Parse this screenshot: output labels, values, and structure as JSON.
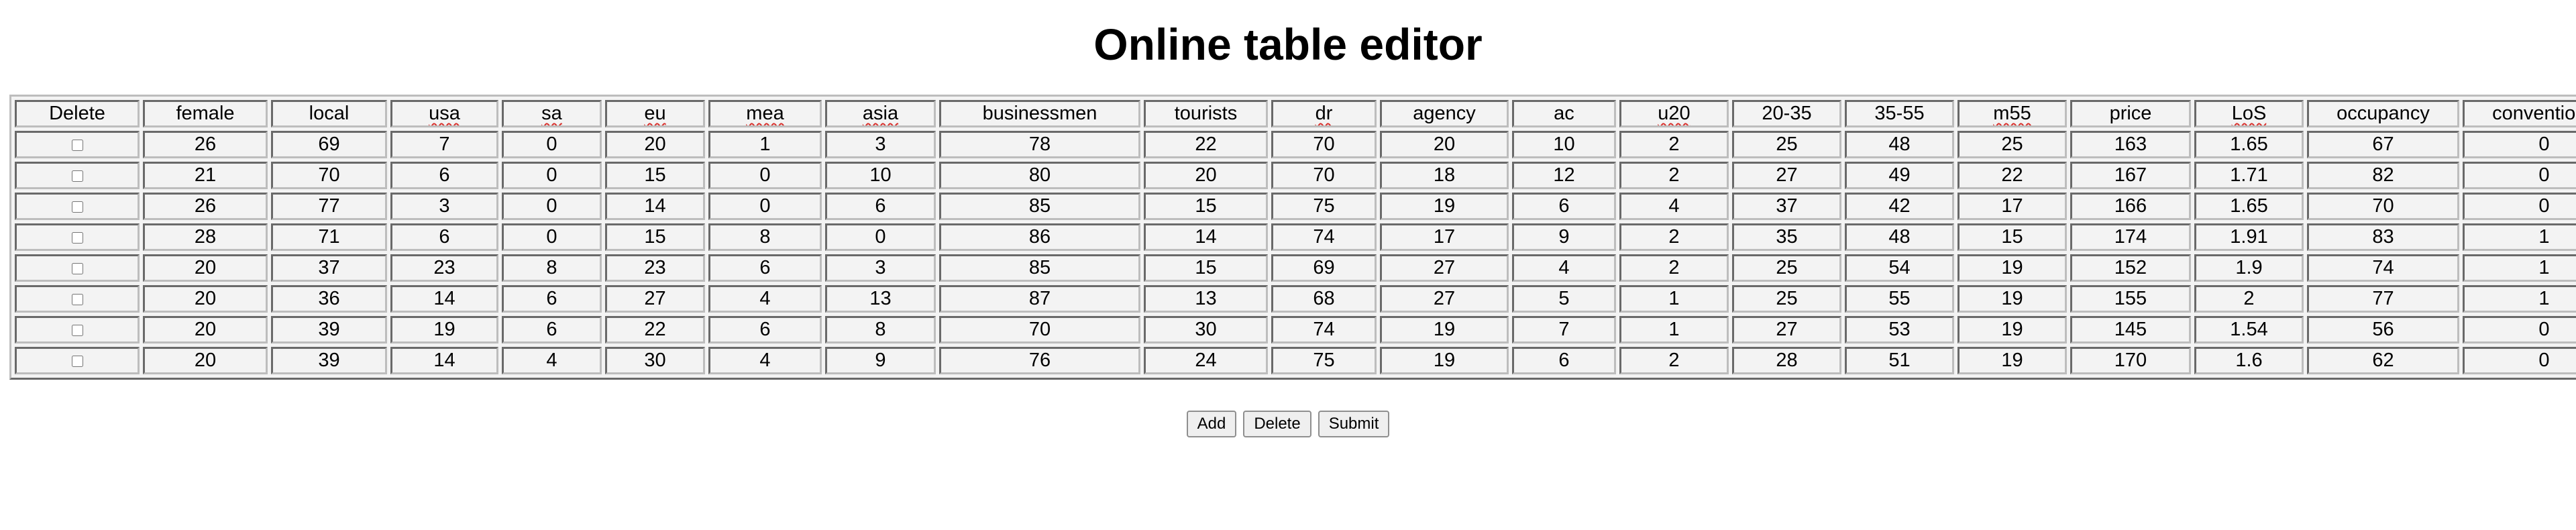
{
  "page": {
    "title": "Online table editor"
  },
  "table": {
    "columns": [
      {
        "label": "Delete",
        "key": "delete",
        "spell": false
      },
      {
        "label": "female",
        "key": "female",
        "spell": false
      },
      {
        "label": "local",
        "key": "local",
        "spell": false
      },
      {
        "label": "usa",
        "key": "usa",
        "spell": true
      },
      {
        "label": "sa",
        "key": "sa",
        "spell": true
      },
      {
        "label": "eu",
        "key": "eu",
        "spell": true
      },
      {
        "label": "mea",
        "key": "mea",
        "spell": true
      },
      {
        "label": "asia",
        "key": "asia",
        "spell": true
      },
      {
        "label": "businessmen",
        "key": "businessmen",
        "spell": false
      },
      {
        "label": "tourists",
        "key": "tourists",
        "spell": false
      },
      {
        "label": "dr",
        "key": "dr",
        "spell": true
      },
      {
        "label": "agency",
        "key": "agency",
        "spell": false
      },
      {
        "label": "ac",
        "key": "ac",
        "spell": false
      },
      {
        "label": "u20",
        "key": "u20",
        "spell": true
      },
      {
        "label": "20-35",
        "key": "a20_35",
        "spell": false
      },
      {
        "label": "35-55",
        "key": "a35_55",
        "spell": false
      },
      {
        "label": "m55",
        "key": "m55",
        "spell": true
      },
      {
        "label": "price",
        "key": "price",
        "spell": false
      },
      {
        "label": "LoS",
        "key": "los",
        "spell": true
      },
      {
        "label": "occupancy",
        "key": "occupancy",
        "spell": false
      },
      {
        "label": "conventions",
        "key": "conventions",
        "spell": false
      }
    ],
    "rows": [
      {
        "checked": false,
        "values": [
          "26",
          "69",
          "7",
          "0",
          "20",
          "1",
          "3",
          "78",
          "22",
          "70",
          "20",
          "10",
          "2",
          "25",
          "48",
          "25",
          "163",
          "1.65",
          "67",
          "0"
        ]
      },
      {
        "checked": false,
        "values": [
          "21",
          "70",
          "6",
          "0",
          "15",
          "0",
          "10",
          "80",
          "20",
          "70",
          "18",
          "12",
          "2",
          "27",
          "49",
          "22",
          "167",
          "1.71",
          "82",
          "0"
        ]
      },
      {
        "checked": false,
        "values": [
          "26",
          "77",
          "3",
          "0",
          "14",
          "0",
          "6",
          "85",
          "15",
          "75",
          "19",
          "6",
          "4",
          "37",
          "42",
          "17",
          "166",
          "1.65",
          "70",
          "0"
        ]
      },
      {
        "checked": false,
        "values": [
          "28",
          "71",
          "6",
          "0",
          "15",
          "8",
          "0",
          "86",
          "14",
          "74",
          "17",
          "9",
          "2",
          "35",
          "48",
          "15",
          "174",
          "1.91",
          "83",
          "1"
        ]
      },
      {
        "checked": false,
        "values": [
          "20",
          "37",
          "23",
          "8",
          "23",
          "6",
          "3",
          "85",
          "15",
          "69",
          "27",
          "4",
          "2",
          "25",
          "54",
          "19",
          "152",
          "1.9",
          "74",
          "1"
        ]
      },
      {
        "checked": false,
        "values": [
          "20",
          "36",
          "14",
          "6",
          "27",
          "4",
          "13",
          "87",
          "13",
          "68",
          "27",
          "5",
          "1",
          "25",
          "55",
          "19",
          "155",
          "2",
          "77",
          "1"
        ]
      },
      {
        "checked": false,
        "values": [
          "20",
          "39",
          "19",
          "6",
          "22",
          "6",
          "8",
          "70",
          "30",
          "74",
          "19",
          "7",
          "1",
          "27",
          "53",
          "19",
          "145",
          "1.54",
          "56",
          "0"
        ]
      },
      {
        "checked": false,
        "values": [
          "20",
          "39",
          "14",
          "4",
          "30",
          "4",
          "9",
          "76",
          "24",
          "75",
          "19",
          "6",
          "2",
          "28",
          "51",
          "19",
          "170",
          "1.6",
          "62",
          "0"
        ]
      }
    ]
  },
  "buttons": {
    "add_label": "Add",
    "delete_label": "Delete",
    "submit_label": "Submit"
  }
}
